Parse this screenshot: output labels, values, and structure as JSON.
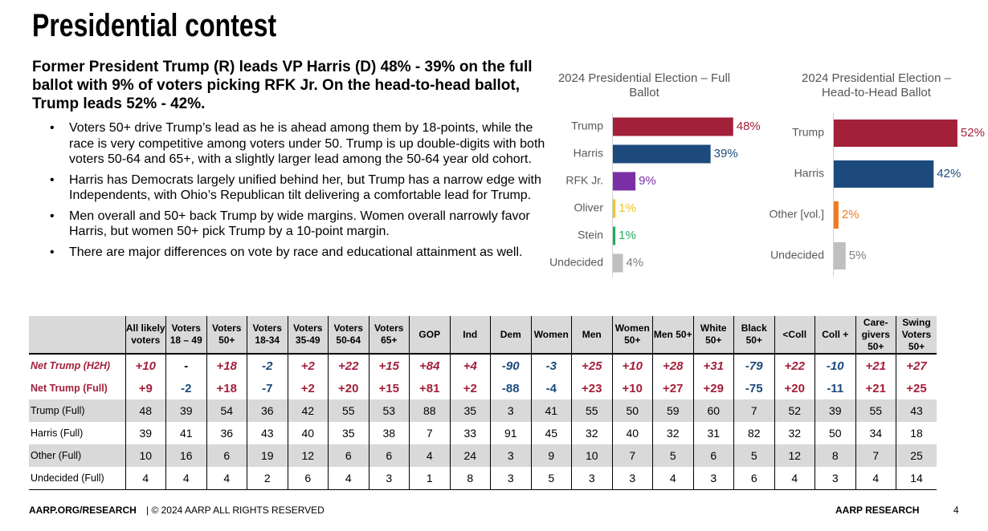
{
  "title": "Presidential contest",
  "headline": "Former President Trump (R) leads VP Harris (D) 48% - 39% on the full ballot with 9% of voters picking RFK Jr. On the head-to-head ballot, Trump leads 52% - 42%.",
  "bullets": [
    "Voters 50+ drive Trump’s lead as he is ahead among them by 18-points, while the race is very competitive among voters under 50. Trump is up double-digits with both voters 50-64 and 65+, with a slightly larger lead among the 50-64 year old cohort.",
    "Harris has Democrats largely unified behind her, but Trump has a narrow edge with Independents, with Ohio’s Republican tilt delivering a comfortable lead for Trump.",
    "Men overall and 50+ back Trump by wide margins. Women overall narrowly favor Harris, but women 50+ pick Trump by a 10-point margin.",
    "There are major differences on vote by race and educational attainment as well."
  ],
  "chart_data": [
    {
      "type": "bar",
      "orientation": "horizontal",
      "title": "2024 Presidential Election – Full Ballot",
      "categories": [
        "Trump",
        "Harris",
        "RFK Jr.",
        "Oliver",
        "Stein",
        "Undecided"
      ],
      "values": [
        48,
        39,
        9,
        1,
        1,
        4
      ],
      "value_labels": [
        "48%",
        "39%",
        "9%",
        "1%",
        "1%",
        "4%"
      ],
      "colors": [
        "#a3203a",
        "#1c4a7c",
        "#7a2fa6",
        "#f2c12e",
        "#1fae5a",
        "#bfbfbf"
      ]
    },
    {
      "type": "bar",
      "orientation": "horizontal",
      "title": "2024 Presidential Election – Head-to-Head Ballot",
      "categories": [
        "Trump",
        "Harris",
        "Other [vol.]",
        "Undecided"
      ],
      "values": [
        52,
        42,
        2,
        5
      ],
      "value_labels": [
        "52%",
        "42%",
        "2%",
        "5%"
      ],
      "colors": [
        "#a3203a",
        "#1c4a7c",
        "#f07a22",
        "#bfbfbf"
      ]
    }
  ],
  "table": {
    "header": [
      "All likely voters",
      "Voters 18 – 49",
      "Voters 50+",
      "Voters 18-34",
      "Voters 35-49",
      "Voters 50-64",
      "Voters 65+",
      "GOP",
      "Ind",
      "Dem",
      "Women",
      "Men",
      "Women 50+",
      "Men 50+",
      "White 50+",
      "Black 50+",
      "<Coll",
      "Coll +",
      "Care-givers 50+",
      "Swing Voters 50+"
    ],
    "rows": [
      {
        "label": "Net Trump (H2H)",
        "cells": [
          "+10",
          "-",
          "+18",
          "-2",
          "+2",
          "+22",
          "+15",
          "+84",
          "+4",
          "-90",
          "-3",
          "+25",
          "+10",
          "+28",
          "+31",
          "-79",
          "+22",
          "-10",
          "+21",
          "+27"
        ]
      },
      {
        "label": "Net Trump (Full)",
        "cells": [
          "+9",
          "-2",
          "+18",
          "-7",
          "+2",
          "+20",
          "+15",
          "+81",
          "+2",
          "-88",
          "-4",
          "+23",
          "+10",
          "+27",
          "+29",
          "-75",
          "+20",
          "-11",
          "+21",
          "+25"
        ]
      },
      {
        "label": "Trump (Full)",
        "cells": [
          "48",
          "39",
          "54",
          "36",
          "42",
          "55",
          "53",
          "88",
          "35",
          "3",
          "41",
          "55",
          "50",
          "59",
          "60",
          "7",
          "52",
          "39",
          "55",
          "43"
        ]
      },
      {
        "label": "Harris (Full)",
        "cells": [
          "39",
          "41",
          "36",
          "43",
          "40",
          "35",
          "38",
          "7",
          "33",
          "91",
          "45",
          "32",
          "40",
          "32",
          "31",
          "82",
          "32",
          "50",
          "34",
          "18"
        ]
      },
      {
        "label": "Other (Full)",
        "cells": [
          "10",
          "16",
          "6",
          "19",
          "12",
          "6",
          "6",
          "4",
          "24",
          "3",
          "9",
          "10",
          "7",
          "5",
          "6",
          "5",
          "12",
          "8",
          "7",
          "25"
        ]
      },
      {
        "label": "Undecided (Full)",
        "cells": [
          "4",
          "4",
          "4",
          "2",
          "6",
          "4",
          "3",
          "1",
          "8",
          "3",
          "5",
          "3",
          "3",
          "4",
          "3",
          "6",
          "4",
          "3",
          "4",
          "14"
        ]
      }
    ]
  },
  "footer": {
    "site": "AARP.ORG/RESEARCH",
    "rights": "| © 2024 AARP ALL RIGHTS RESERVED",
    "brand": "AARP RESEARCH",
    "page": "4"
  }
}
